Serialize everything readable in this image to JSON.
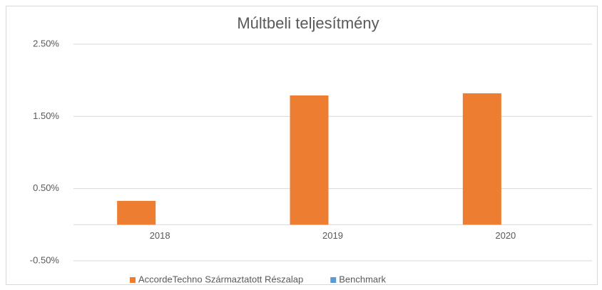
{
  "chart_data": {
    "type": "bar",
    "title": "Múltbeli teljesítmény",
    "categories": [
      "2018",
      "2019",
      "2020"
    ],
    "series": [
      {
        "name": "AccordeTechno Származtatott Részalap",
        "color": "#ed7d31",
        "values": [
          0.33,
          1.79,
          1.82
        ]
      },
      {
        "name": "Benchmark",
        "color": "#5b9bd5",
        "values": [
          null,
          null,
          null
        ]
      }
    ],
    "ylim": [
      -0.5,
      2.5
    ],
    "yticks": [
      {
        "value": -0.5,
        "label": "-0.50%"
      },
      {
        "value": 0.5,
        "label": "0.50%"
      },
      {
        "value": 1.5,
        "label": "1.50%"
      },
      {
        "value": 2.5,
        "label": "2.50%"
      }
    ],
    "grid": true,
    "legend": "bottom"
  }
}
